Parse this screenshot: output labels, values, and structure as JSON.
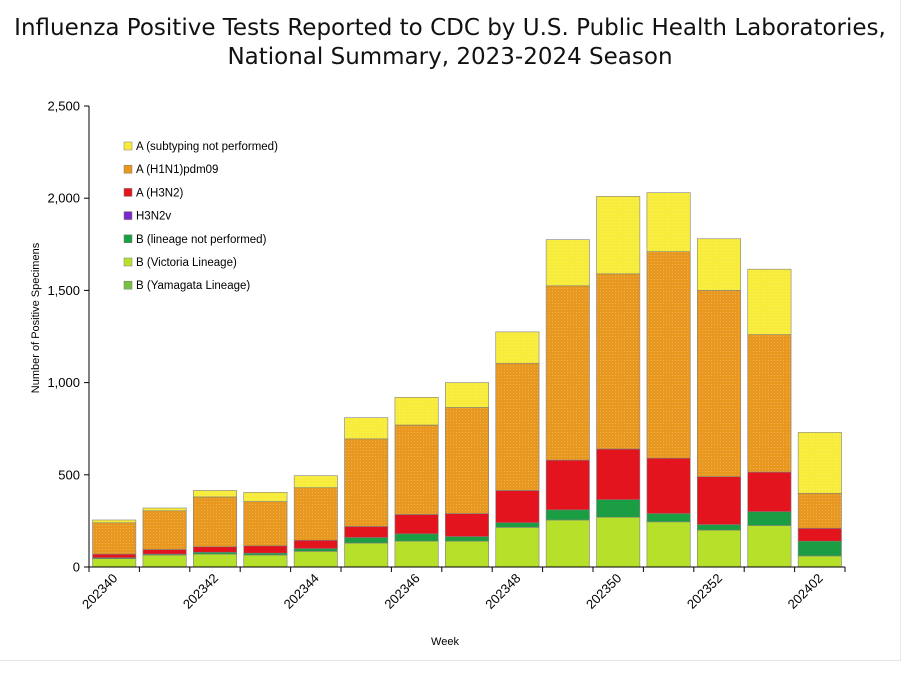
{
  "chart_data": {
    "type": "bar",
    "stacked": true,
    "title_lines": [
      "Influenza Positive Tests Reported to CDC by U.S. Public Health Laboratories,",
      "National Summary, 2023-2024 Season"
    ],
    "xlabel": "Week",
    "ylabel": "Number of Positive Specimens",
    "ylim": [
      0,
      2500
    ],
    "yticks": [
      0,
      500,
      1000,
      1500,
      2000,
      2500
    ],
    "ytick_labels": [
      "0",
      "500",
      "1,000",
      "1,500",
      "2,000",
      "2,500"
    ],
    "categories": [
      "202340",
      "202341",
      "202342",
      "202343",
      "202344",
      "202345",
      "202346",
      "202347",
      "202348",
      "202349",
      "202350",
      "202351",
      "202352",
      "202401",
      "202402"
    ],
    "xtick_labels": [
      "202340",
      "",
      "202342",
      "",
      "202344",
      "",
      "202346",
      "",
      "202348",
      "",
      "202350",
      "",
      "202352",
      "",
      "202402"
    ],
    "legend_position": "top-left",
    "series": [
      {
        "name": "B (Yamagata Lineage)",
        "color": "#77c043",
        "values": [
          0,
          0,
          0,
          0,
          0,
          0,
          0,
          0,
          0,
          0,
          0,
          0,
          0,
          0,
          0
        ]
      },
      {
        "name": "B (Victoria Lineage)",
        "color": "#b6e02a",
        "values": [
          45,
          65,
          70,
          65,
          85,
          130,
          140,
          140,
          215,
          255,
          270,
          245,
          200,
          225,
          60
        ]
      },
      {
        "name": "B (lineage not performed)",
        "color": "#1b9e43",
        "values": [
          5,
          5,
          10,
          10,
          15,
          30,
          40,
          25,
          25,
          55,
          95,
          45,
          30,
          75,
          80
        ]
      },
      {
        "name": "H3N2v",
        "color": "#7a28c8",
        "values": [
          0,
          0,
          0,
          0,
          0,
          0,
          0,
          0,
          0,
          0,
          0,
          0,
          0,
          0,
          0
        ]
      },
      {
        "name": "A (H3N2)",
        "color": "#e3141e",
        "values": [
          20,
          25,
          30,
          40,
          45,
          60,
          105,
          125,
          175,
          270,
          275,
          300,
          260,
          215,
          70
        ]
      },
      {
        "name": "A (H1N1)pdm09",
        "color": "#e8981e",
        "values": [
          170,
          210,
          270,
          240,
          285,
          475,
          485,
          575,
          690,
          945,
          950,
          1120,
          1010,
          745,
          190
        ]
      },
      {
        "name": "A (subtyping not performed)",
        "color": "#f8ec3b",
        "values": [
          15,
          15,
          35,
          50,
          65,
          115,
          150,
          135,
          170,
          250,
          420,
          320,
          280,
          355,
          330
        ]
      }
    ],
    "legend_order": [
      "A (subtyping not performed)",
      "A (H1N1)pdm09",
      "A (H3N2)",
      "H3N2v",
      "B (lineage not performed)",
      "B (Victoria Lineage)",
      "B (Yamagata Lineage)"
    ]
  }
}
